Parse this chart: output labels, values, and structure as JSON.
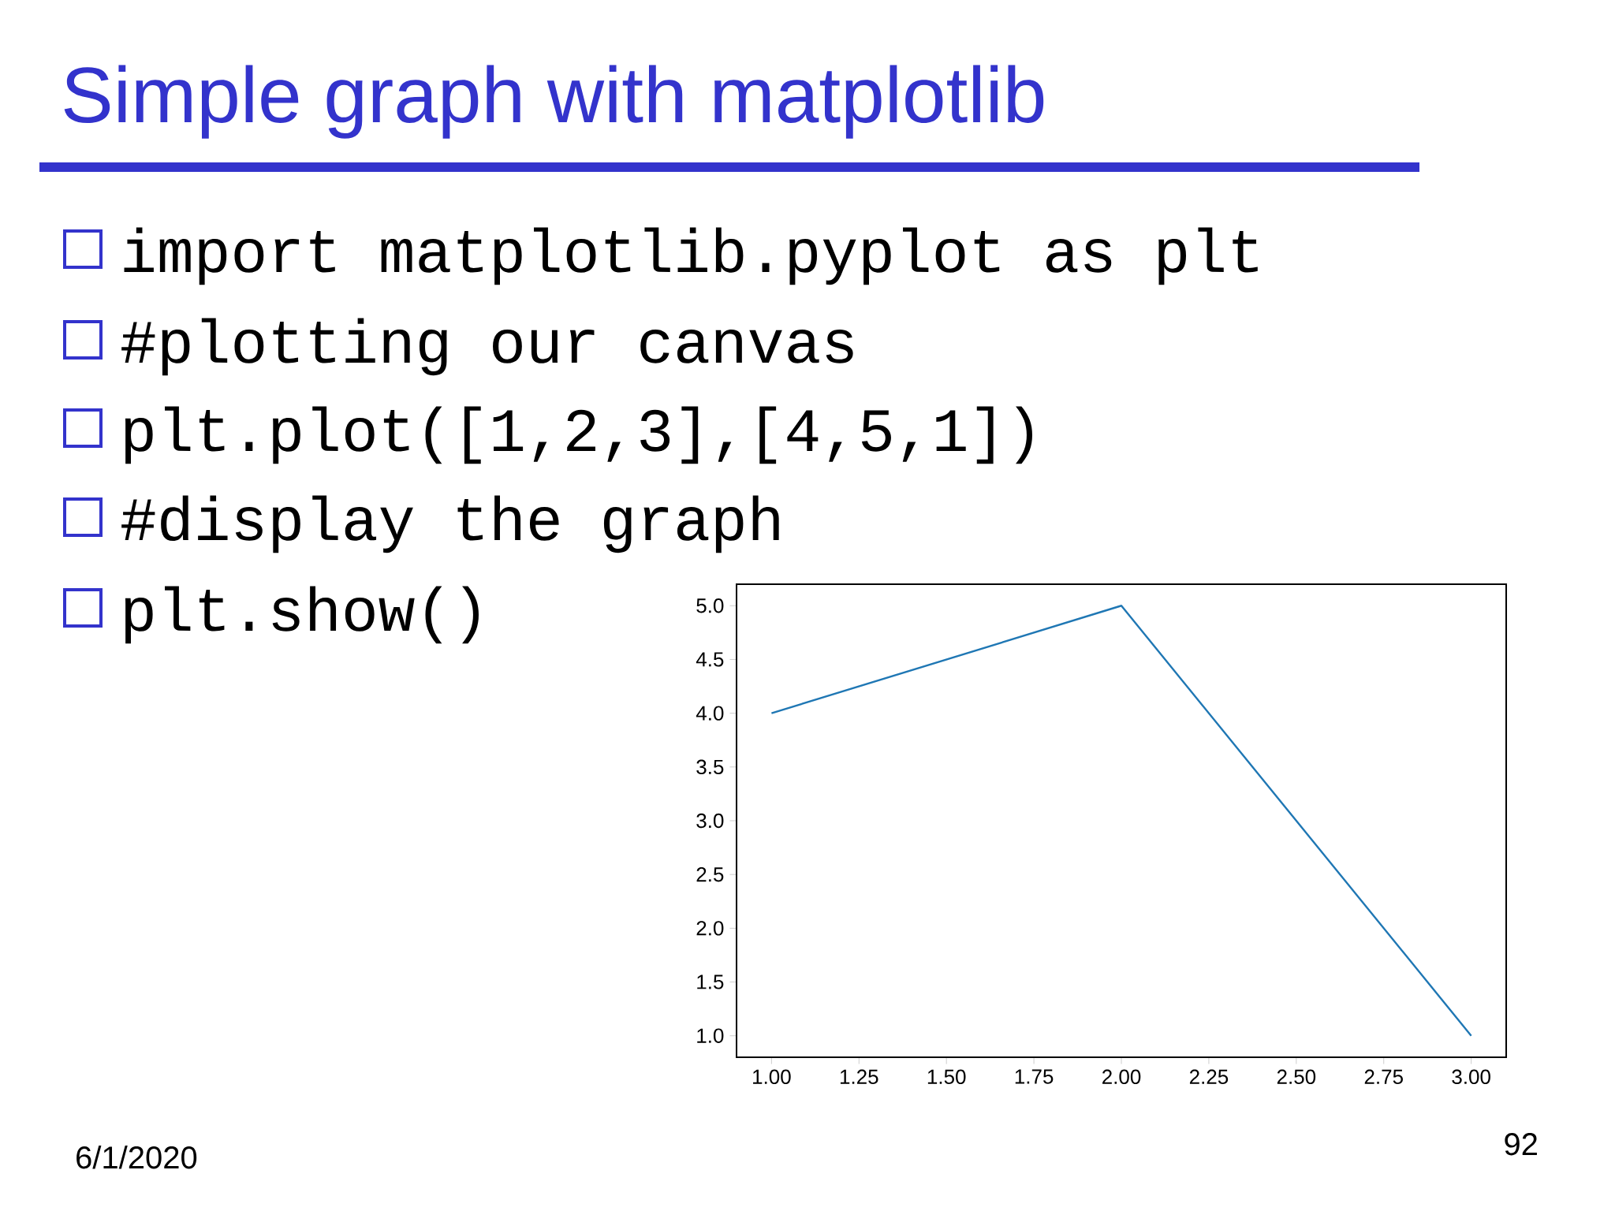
{
  "chart_data": {
    "type": "line",
    "title": "Simple graph with matplotlib",
    "annotations": [
      "import matplotlib.pyplot  as plt",
      "#plotting our canvas",
      "plt.plot([1,2,3],[4,5,1])",
      "#display the graph",
      "plt.show()",
      "6/1/2020",
      "92"
    ],
    "x": [
      1,
      2,
      3
    ],
    "values": [
      4,
      5,
      1
    ],
    "color": "#1f77b4",
    "xlim": [
      0.9,
      3.1
    ],
    "ylim": [
      0.8,
      5.2
    ],
    "xticks": [
      {
        "value": 1,
        "label": "1.00"
      },
      {
        "value": 1.25,
        "label": "1.25"
      },
      {
        "value": 1.5,
        "label": "1.50"
      },
      {
        "value": 1.75,
        "label": "1.75"
      },
      {
        "value": 2,
        "label": "2.00"
      },
      {
        "value": 2.25,
        "label": "2.25"
      },
      {
        "value": 2.5,
        "label": "2.50"
      },
      {
        "value": 2.75,
        "label": "2.75"
      },
      {
        "value": 3,
        "label": "3.00"
      }
    ],
    "yticks": [
      {
        "value": 1,
        "label": "1.0"
      },
      {
        "value": 1.5,
        "label": "1.5"
      },
      {
        "value": 2,
        "label": "2.0"
      },
      {
        "value": 2.5,
        "label": "2.5"
      },
      {
        "value": 3,
        "label": "3.0"
      },
      {
        "value": 3.5,
        "label": "3.5"
      },
      {
        "value": 4,
        "label": "4.0"
      },
      {
        "value": 4.5,
        "label": "4.5"
      },
      {
        "value": 5,
        "label": "5.0"
      }
    ],
    "grid": false,
    "marker": "none",
    "line_style": "solid"
  }
}
